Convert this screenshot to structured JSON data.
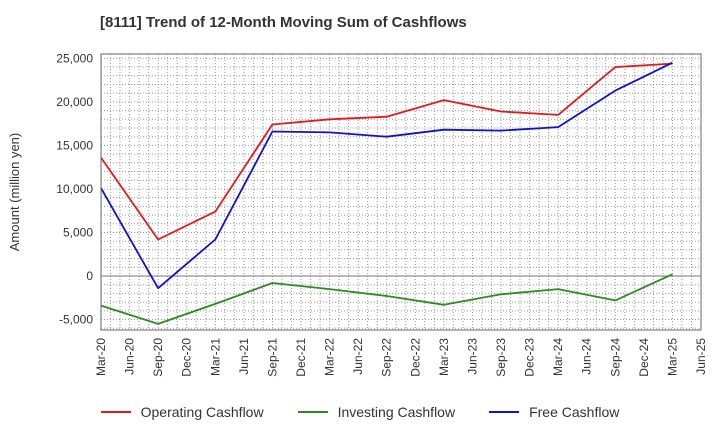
{
  "title": "[8111]  Trend of 12-Month Moving Sum of Cashflows",
  "chart_data": {
    "type": "line",
    "title": "[8111]  Trend of 12-Month Moving Sum of Cashflows",
    "ylabel": "Amount (million yen)",
    "xlabel": "",
    "ylim": [
      -6200,
      25500
    ],
    "yticks": [
      -5000,
      0,
      5000,
      10000,
      15000,
      20000,
      25000
    ],
    "ytick_labels": [
      "-5,000",
      "0",
      "5,000",
      "10,000",
      "15,000",
      "20,000",
      "25,000"
    ],
    "categories": [
      "Mar-20",
      "Jun-20",
      "Sep-20",
      "Dec-20",
      "Mar-21",
      "Jun-21",
      "Sep-21",
      "Dec-21",
      "Mar-22",
      "Jun-22",
      "Sep-22",
      "Dec-22",
      "Mar-23",
      "Jun-23",
      "Sep-23",
      "Dec-23",
      "Mar-24",
      "Jun-24",
      "Sep-24",
      "Dec-24",
      "Mar-25",
      "Jun-25"
    ],
    "grid": true,
    "legend_position": "bottom",
    "series": [
      {
        "name": "Operating Cashflow",
        "color": "#e31a1c",
        "values": [
          13600,
          null,
          4200,
          null,
          7400,
          null,
          17400,
          null,
          18000,
          null,
          18300,
          null,
          20200,
          null,
          18900,
          null,
          18500,
          null,
          24000,
          null,
          24400,
          null
        ]
      },
      {
        "name": "Investing Cashflow",
        "color": "#2e8b22",
        "values": [
          -3400,
          null,
          -5500,
          null,
          -3200,
          null,
          -800,
          null,
          -1500,
          null,
          -2300,
          null,
          -3300,
          null,
          -2100,
          null,
          -1500,
          null,
          -2800,
          null,
          200,
          null
        ]
      },
      {
        "name": "Free Cashflow",
        "color": "#1010d0",
        "values": [
          10100,
          null,
          -1400,
          null,
          4200,
          null,
          16600,
          null,
          16500,
          null,
          16000,
          null,
          16800,
          null,
          16700,
          null,
          17100,
          null,
          21300,
          null,
          24500,
          null
        ]
      }
    ]
  }
}
